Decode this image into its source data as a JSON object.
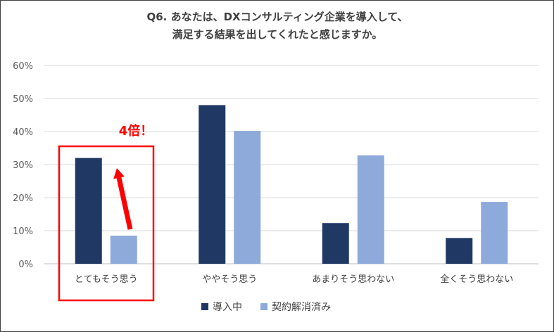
{
  "chart_data": {
    "type": "bar",
    "title": [
      "Q6. あなたは、DXコンサルティング企業を導入して、",
      "満足する結果を出してくれたと感じますか。"
    ],
    "categories": [
      "とてもそう思う",
      "ややそう思う",
      "あまりそう思わない",
      "全くそう思わない"
    ],
    "series": [
      {
        "name": "導入中",
        "values": [
          32,
          48,
          12.3,
          7.8
        ],
        "color": "#1f3864"
      },
      {
        "name": "契約解消済み",
        "values": [
          8.5,
          40.2,
          32.8,
          18.7
        ],
        "color": "#8eaadb"
      }
    ],
    "yticks": [
      "0%",
      "10%",
      "20%",
      "30%",
      "40%",
      "50%",
      "60%"
    ],
    "ylim": [
      0,
      60
    ],
    "grid": true,
    "legend": "bottom",
    "annotation": {
      "text": "4倍！",
      "color": "#ff0000",
      "highlight_category": "とてもそう思う"
    }
  }
}
